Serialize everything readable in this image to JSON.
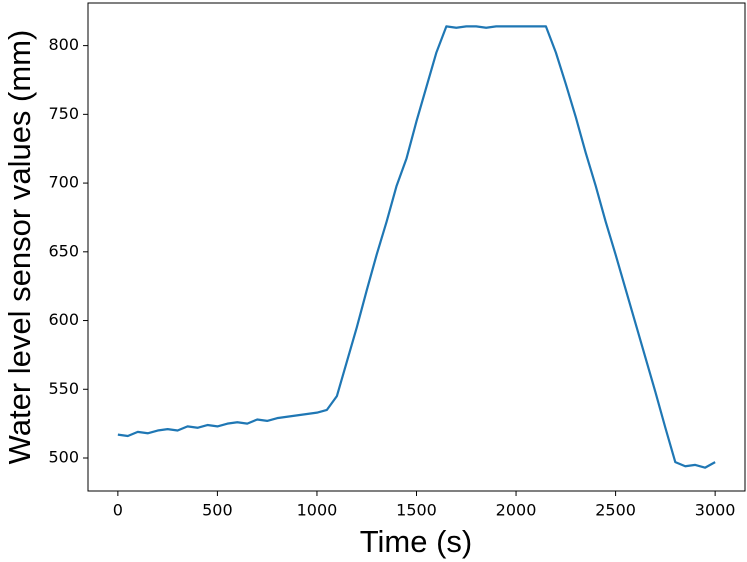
{
  "chart_data": {
    "type": "line",
    "xlabel": "Time (s)",
    "ylabel": "Water level sensor values (mm)",
    "xlim": [
      -150,
      3150
    ],
    "ylim": [
      476,
      831
    ],
    "xticks": [
      0,
      500,
      1000,
      1500,
      2000,
      2500,
      3000
    ],
    "yticks": [
      500,
      550,
      600,
      650,
      700,
      750,
      800
    ],
    "grid": false,
    "x": [
      0,
      50,
      100,
      150,
      200,
      250,
      300,
      350,
      400,
      450,
      500,
      550,
      600,
      650,
      700,
      750,
      800,
      850,
      900,
      950,
      1000,
      1050,
      1100,
      1150,
      1200,
      1250,
      1300,
      1350,
      1400,
      1450,
      1500,
      1550,
      1600,
      1650,
      1700,
      1750,
      1800,
      1850,
      1900,
      1950,
      2000,
      2050,
      2100,
      2150,
      2200,
      2250,
      2300,
      2350,
      2400,
      2450,
      2500,
      2550,
      2600,
      2650,
      2700,
      2750,
      2800,
      2850,
      2900,
      2950,
      3000
    ],
    "series": [
      {
        "color": "#1f77b4",
        "values": [
          517,
          516,
          519,
          518,
          520,
          521,
          520,
          523,
          522,
          524,
          523,
          525,
          526,
          525,
          528,
          527,
          529,
          530,
          531,
          532,
          533,
          535,
          545,
          570,
          595,
          622,
          648,
          672,
          698,
          718,
          745,
          770,
          795,
          814,
          813,
          814,
          814,
          813,
          814,
          814,
          814,
          814,
          814,
          814,
          795,
          772,
          748,
          722,
          698,
          672,
          648,
          623,
          598,
          573,
          548,
          522,
          497,
          494,
          495,
          493,
          497
        ]
      }
    ]
  }
}
